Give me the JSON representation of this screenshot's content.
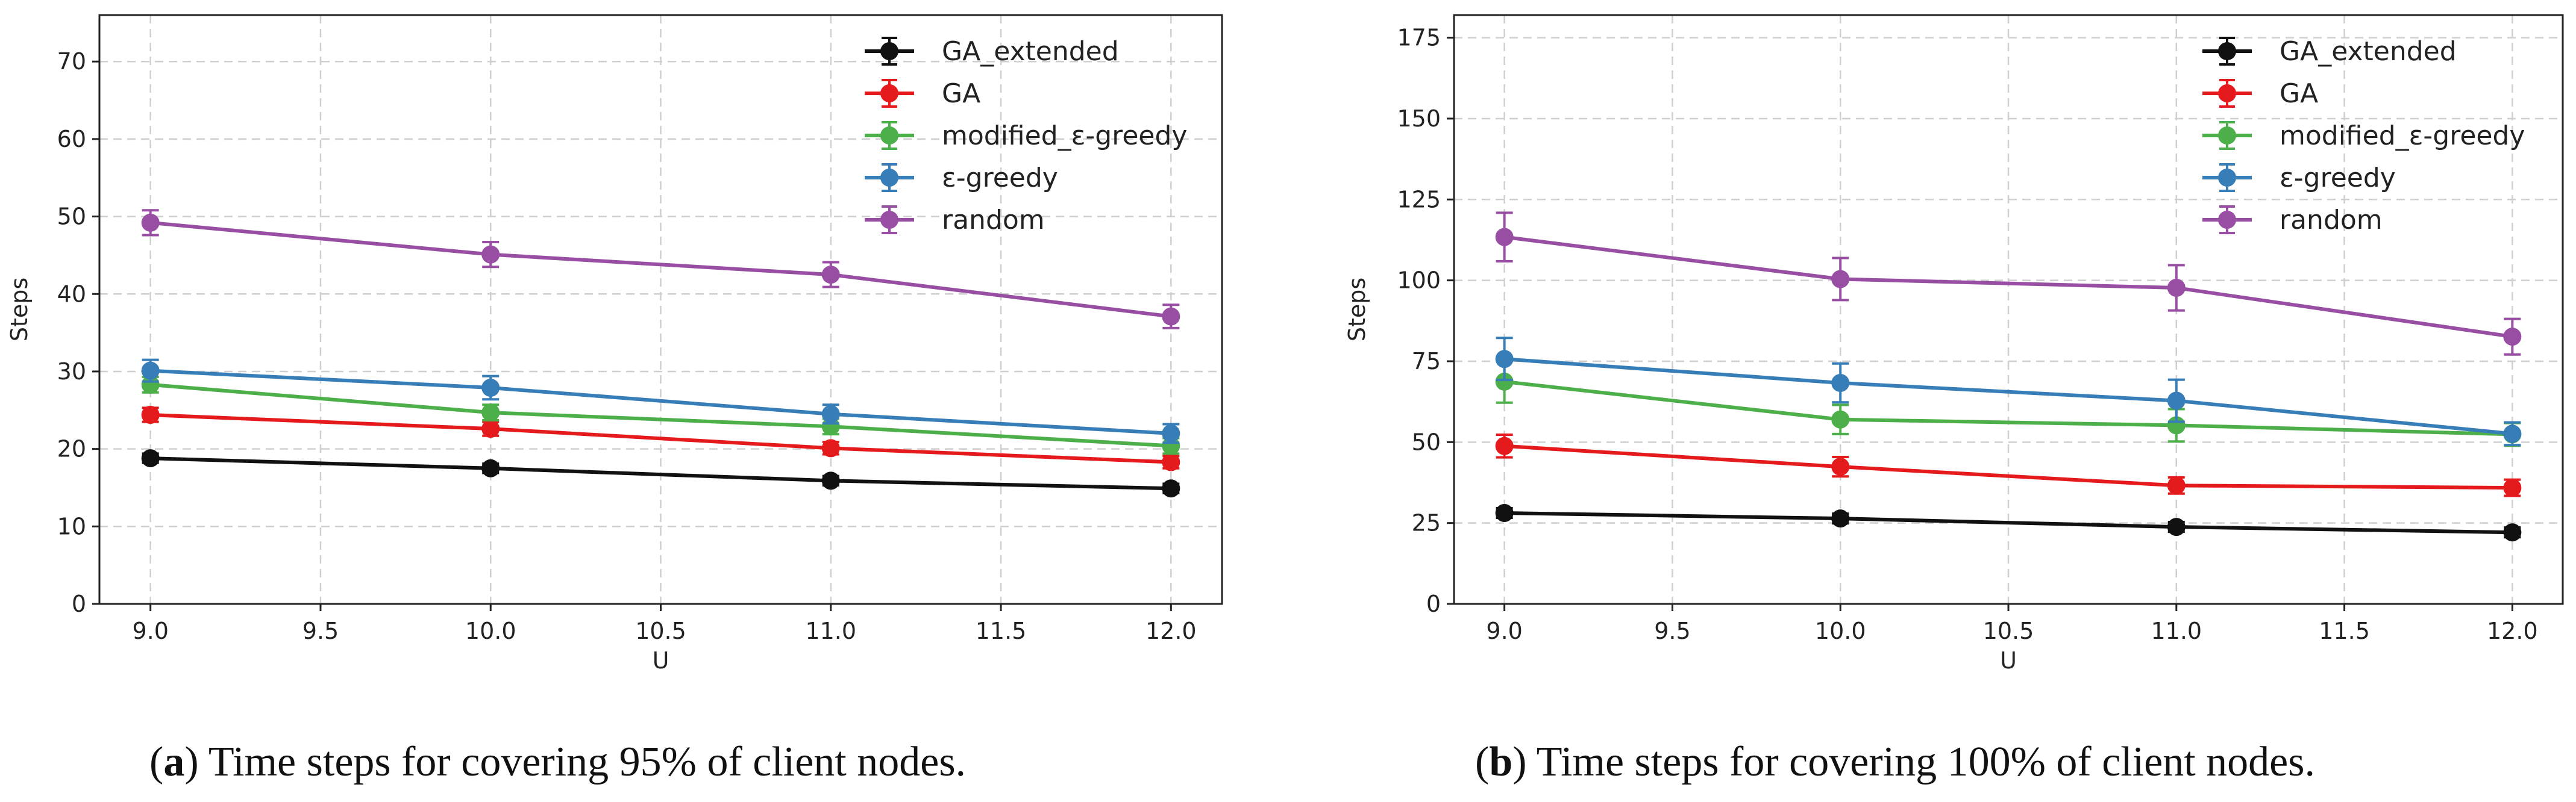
{
  "chart_data": [
    {
      "type": "line",
      "xlabel": "U",
      "ylabel": "Steps",
      "xlim": [
        8.85,
        12.15
      ],
      "ylim": [
        0,
        76
      ],
      "xticks": [
        9.0,
        9.5,
        10.0,
        10.5,
        11.0,
        11.5,
        12.0
      ],
      "xtick_labels": [
        "9.0",
        "9.5",
        "10.0",
        "10.5",
        "11.0",
        "11.5",
        "12.0"
      ],
      "yticks": [
        0,
        10,
        20,
        30,
        40,
        50,
        60,
        70
      ],
      "ytick_labels": [
        "0",
        "10",
        "20",
        "30",
        "40",
        "50",
        "60",
        "70"
      ],
      "grid": true,
      "legend_position": "top-right",
      "x": [
        9,
        10,
        11,
        12
      ],
      "series": [
        {
          "name": "GA_extended",
          "color": "#111111",
          "values": [
            18.8,
            17.5,
            15.9,
            14.9
          ],
          "errors": [
            0.6,
            0.6,
            0.6,
            0.6
          ]
        },
        {
          "name": "GA",
          "color": "#e41a1c",
          "values": [
            24.4,
            22.6,
            20.1,
            18.3
          ],
          "errors": [
            0.9,
            0.9,
            0.8,
            0.8
          ]
        },
        {
          "name": "modified_ε-greedy",
          "color": "#4daf4a",
          "values": [
            28.3,
            24.7,
            22.9,
            20.4
          ],
          "errors": [
            1.0,
            1.0,
            1.0,
            1.0
          ]
        },
        {
          "name": "ε-greedy",
          "color": "#377eb8",
          "values": [
            30.1,
            27.9,
            24.5,
            22.0
          ],
          "errors": [
            1.4,
            1.5,
            1.2,
            1.2
          ]
        },
        {
          "name": "random",
          "color": "#984ea3",
          "values": [
            49.2,
            45.1,
            42.5,
            37.1
          ],
          "errors": [
            1.6,
            1.6,
            1.6,
            1.5
          ]
        }
      ]
    },
    {
      "type": "line",
      "xlabel": "U",
      "ylabel": "Steps",
      "xlim": [
        8.85,
        12.15
      ],
      "ylim": [
        0,
        182
      ],
      "xticks": [
        9.0,
        9.5,
        10.0,
        10.5,
        11.0,
        11.5,
        12.0
      ],
      "xtick_labels": [
        "9.0",
        "9.5",
        "10.0",
        "10.5",
        "11.0",
        "11.5",
        "12.0"
      ],
      "yticks": [
        0,
        25,
        50,
        75,
        100,
        125,
        150,
        175
      ],
      "ytick_labels": [
        "0",
        "25",
        "50",
        "75",
        "100",
        "125",
        "150",
        "175"
      ],
      "grid": true,
      "legend_position": "top-right",
      "x": [
        9,
        10,
        11,
        12
      ],
      "series": [
        {
          "name": "GA_extended",
          "color": "#111111",
          "values": [
            28.1,
            26.4,
            23.8,
            22.1
          ],
          "errors": [
            1.5,
            1.5,
            1.5,
            1.5
          ]
        },
        {
          "name": "GA",
          "color": "#e41a1c",
          "values": [
            48.8,
            42.4,
            36.6,
            35.9
          ],
          "errors": [
            3.5,
            3.0,
            2.5,
            2.5
          ]
        },
        {
          "name": "modified_ε-greedy",
          "color": "#4daf4a",
          "values": [
            68.7,
            57.0,
            55.2,
            52.4
          ],
          "errors": [
            6.5,
            4.5,
            5.0,
            3.5
          ]
        },
        {
          "name": "ε-greedy",
          "color": "#377eb8",
          "values": [
            75.7,
            68.3,
            62.8,
            52.6
          ],
          "errors": [
            6.5,
            6.0,
            6.5,
            3.5
          ]
        },
        {
          "name": "random",
          "color": "#984ea3",
          "values": [
            113.4,
            100.4,
            97.7,
            82.6
          ],
          "errors": [
            7.5,
            6.5,
            7.0,
            5.5
          ]
        }
      ]
    }
  ],
  "captions": [
    {
      "letter": "a",
      "text": " Time steps for covering 95% of client nodes."
    },
    {
      "letter": "b",
      "text": " Time steps for covering 100% of client nodes."
    }
  ]
}
